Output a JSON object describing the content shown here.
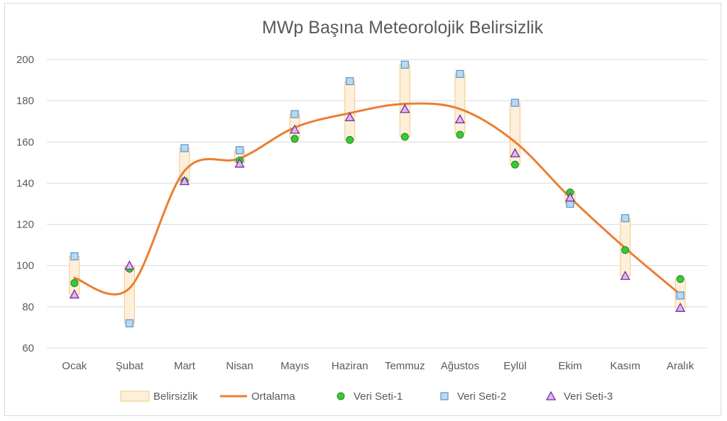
{
  "chart_data": {
    "type": "line",
    "title": "MWp Başına Meteorolojik Belirsizlik",
    "categories": [
      "Ocak",
      "Şubat",
      "Mart",
      "Nisan",
      "Mayıs",
      "Haziran",
      "Temmuz",
      "Ağustos",
      "Eylül",
      "Ekim",
      "Kasım",
      "Aralık"
    ],
    "ylim": [
      60,
      200
    ],
    "yticks": [
      60,
      80,
      100,
      120,
      140,
      160,
      180,
      200
    ],
    "grid": true,
    "legend_position": "bottom",
    "series": [
      {
        "name": "Belirsizlik",
        "kind": "range",
        "color": "#f5c77e",
        "fill": "#fdf0da",
        "low": [
          86,
          72,
          141,
          150,
          162,
          161,
          162.5,
          164,
          149,
          130,
          95,
          79.5
        ],
        "high": [
          104.5,
          100,
          157,
          156,
          173.5,
          189.5,
          197.5,
          193,
          179,
          136,
          123,
          93.5
        ]
      },
      {
        "name": "Ortalama",
        "kind": "line",
        "color": "#ed7d31",
        "values": [
          94,
          89,
          146,
          152,
          167,
          174,
          178.5,
          176,
          160,
          133,
          108.5,
          86
        ]
      },
      {
        "name": "Veri Seti-1",
        "kind": "scatter",
        "marker": "circle",
        "color": "#33cc33",
        "values": [
          91.5,
          98.5,
          141,
          151,
          161.5,
          161,
          162.5,
          163.5,
          149,
          135.5,
          107.5,
          93.5
        ]
      },
      {
        "name": "Veri Seti-2",
        "kind": "scatter",
        "marker": "square",
        "color": "#5b9bd5",
        "values": [
          104.5,
          72,
          157,
          156,
          173.5,
          189.5,
          197.5,
          193,
          179,
          130,
          123,
          85.5
        ]
      },
      {
        "name": "Veri Seti-3",
        "kind": "scatter",
        "marker": "triangle",
        "color": "#b05fd6",
        "values": [
          86,
          100,
          141,
          149.5,
          166,
          172,
          176,
          171,
          154.5,
          133,
          95,
          79.5
        ]
      }
    ]
  }
}
